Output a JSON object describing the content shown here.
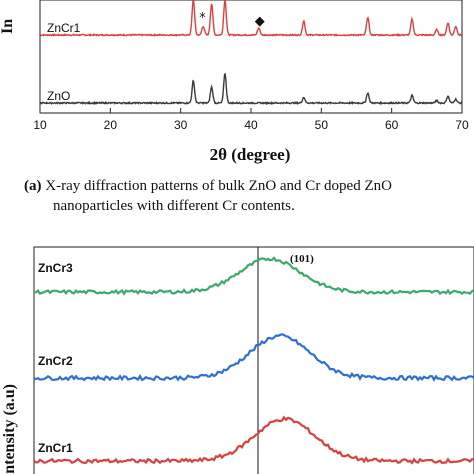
{
  "caption": {
    "tag": "(a)",
    "line1": "X-ray diffraction patterns of bulk ZnO and Cr doped ZnO",
    "line2": "nanoparticles with different Cr contents."
  },
  "chart_data": [
    {
      "type": "line",
      "title": "",
      "xlabel": "2θ (degree)",
      "ylabel": "In",
      "xlim": [
        10,
        70
      ],
      "x_ticks": [
        10,
        20,
        30,
        40,
        50,
        60,
        70
      ],
      "grid": false,
      "colors": {
        "ZnO": "#3a3a3a",
        "ZnCr1": "#d94040"
      },
      "series": [
        {
          "name": "ZnCr1",
          "label_position": "left",
          "peaks_2theta": [
            31.8,
            33.2,
            34.4,
            36.3,
            41.1,
            47.5,
            56.6,
            62.9,
            66.4,
            68.0,
            69.1
          ],
          "peak_heights": [
            1.0,
            0.25,
            0.9,
            1.0,
            0.2,
            0.4,
            0.5,
            0.45,
            0.15,
            0.35,
            0.25
          ]
        },
        {
          "name": "ZnO",
          "label_position": "left",
          "peaks_2theta": [
            31.8,
            34.4,
            36.3,
            47.5,
            56.6,
            62.9,
            66.4,
            68.0,
            69.1
          ],
          "peak_heights": [
            0.58,
            0.42,
            0.78,
            0.15,
            0.26,
            0.2,
            0.06,
            0.18,
            0.1
          ]
        }
      ],
      "annotations": [
        {
          "text": "*",
          "x": 33.2,
          "series": "ZnCr1"
        },
        {
          "text": "◆",
          "x": 41.1,
          "series": "ZnCr1"
        }
      ]
    },
    {
      "type": "line",
      "title": "",
      "xlabel": "",
      "ylabel": "Intensity (a.u)",
      "reference_line": "vertical line at the (101) reflection",
      "peak_label": "(101)",
      "grid": false,
      "colors": {
        "ZnCr3": "#3aaa6a",
        "ZnCr2": "#2f6fd0",
        "ZnCr1": "#d94040"
      },
      "series": [
        {
          "name": "ZnCr3",
          "peak_offset_from_line": 0.05,
          "relative_height": 0.9
        },
        {
          "name": "ZnCr2",
          "peak_offset_from_line": 0.09,
          "relative_height": 1.0
        },
        {
          "name": "ZnCr1",
          "peak_offset_from_line": 0.11,
          "relative_height": 1.0
        }
      ]
    }
  ]
}
